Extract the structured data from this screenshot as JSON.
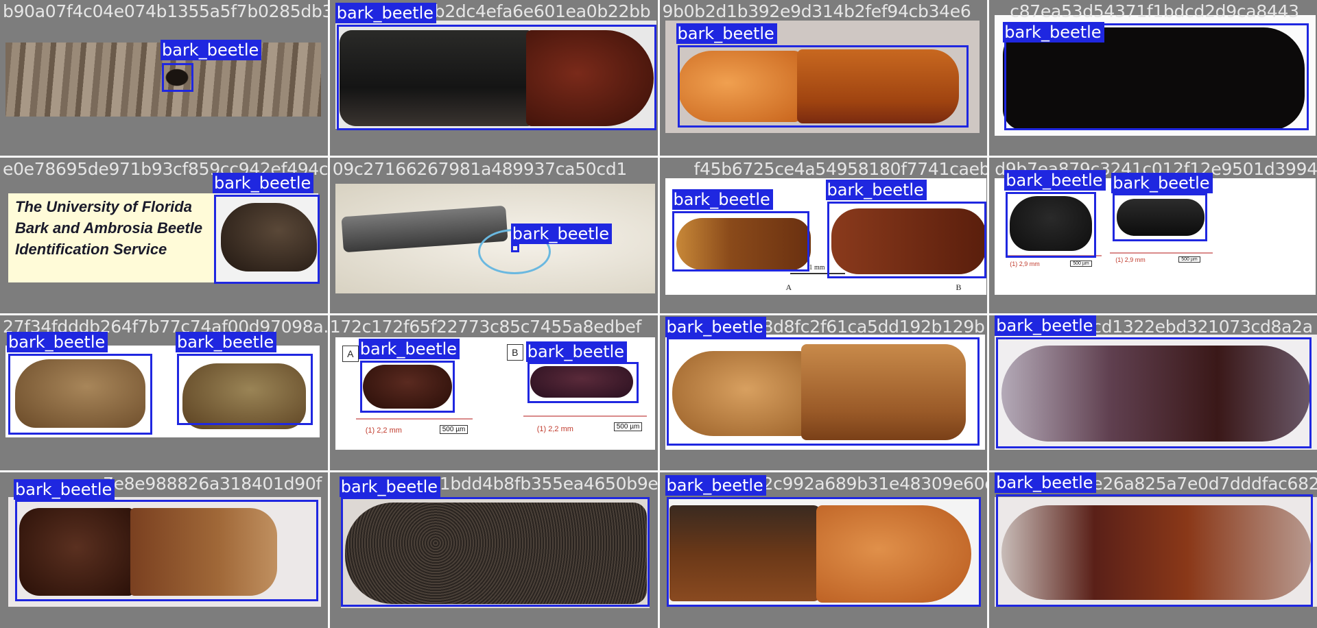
{
  "label": "bark_beetle",
  "colors": {
    "box": "#1f27e0",
    "label_text": "#ffffff",
    "tile_bg": "#7d7d7d",
    "grid_line": "#fafafa"
  },
  "tiles": [
    {
      "filename": "b90a07f4c04e074b1355a5f7b0285db3"
    },
    {
      "filename": "b2dc4efa6e601ea0b22bb"
    },
    {
      "filename": "9b0b2d1b392e9d314b2fef94cb34e6"
    },
    {
      "filename": "c87ea53d54371f1bdcd2d9ca8443"
    },
    {
      "filename": "e0e78695de971b93cf859cc942ef494c2bb"
    },
    {
      "filename": "09c27166267981a489937ca50cd1"
    },
    {
      "filename": "f45b6725ce4a54958180f7741caeba89"
    },
    {
      "filename": "d9b7ea879c3241c012f12e9501d39943"
    },
    {
      "filename": "27f34fdddb264f7b77c74af00d97098a.jpg"
    },
    {
      "filename": "172c172f65f22773c85c7455a8edbef"
    },
    {
      "filename": "8d8fc2f61ca5dd192b129b"
    },
    {
      "filename": "cd1322ebd321073cd8a2a"
    },
    {
      "filename": "7e8e988826a318401d90f"
    },
    {
      "filename": "1bdd4b8fb355ea4650b9e"
    },
    {
      "filename": "2c992a689b31e48309e60e"
    },
    {
      "filename": "e26a825a7e0d7dddfac682"
    }
  ],
  "uf_logo": {
    "line1": "The University of Florida",
    "line2": "Bark and Ambrosia Beetle",
    "line3": "Identification Service"
  },
  "scale_annotations": {
    "t7_scale": "1 mm",
    "t7_a": "A",
    "t7_b": "B",
    "t8_len1": "(1)  2,9 mm",
    "t8_len2": "(1)  2,9 mm",
    "t8_bar1": "500 µm",
    "t8_bar2": "500 µm",
    "t10_a": "A",
    "t10_b": "B",
    "t10_len1": "(1)  2,2 mm",
    "t10_len2": "(1)  2,2 mm",
    "t10_bar1": "500 µm",
    "t10_bar2": "500 µm"
  }
}
